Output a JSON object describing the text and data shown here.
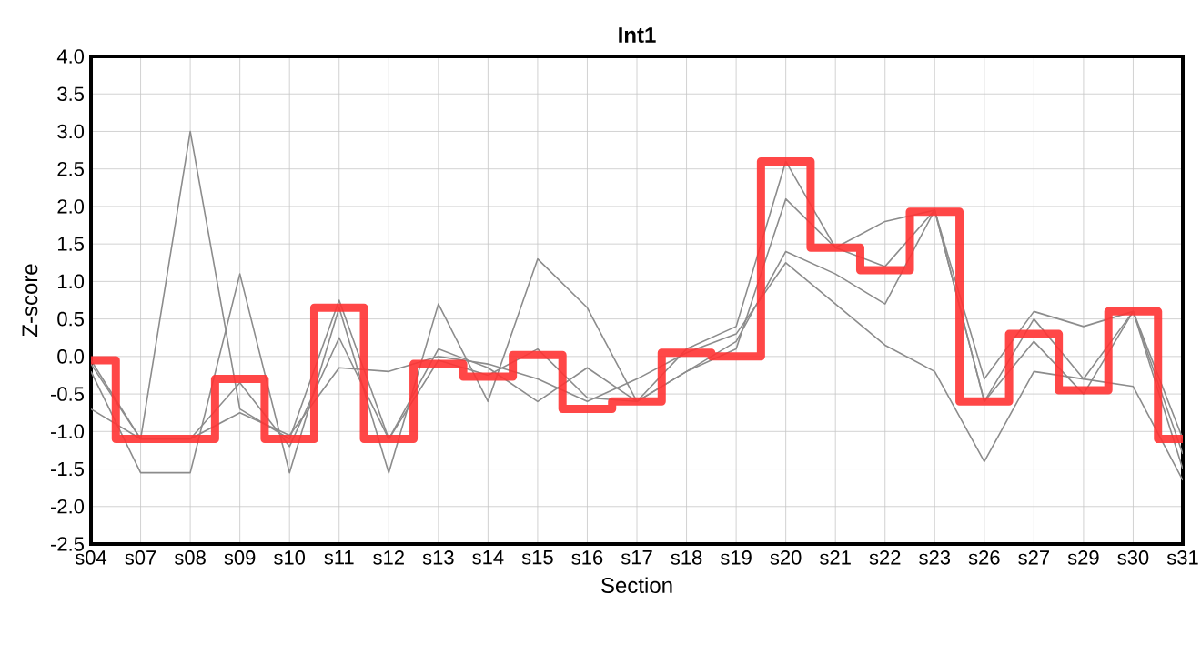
{
  "chart_data": {
    "type": "line",
    "title": "Int1",
    "xlabel": "Section",
    "ylabel": "Z-score",
    "categories": [
      "s04",
      "s07",
      "s08",
      "s09",
      "s10",
      "s11",
      "s12",
      "s13",
      "s14",
      "s15",
      "s16",
      "s17",
      "s18",
      "s19",
      "s20",
      "s21",
      "s22",
      "s23",
      "s26",
      "s27",
      "s29",
      "s30",
      "s31"
    ],
    "series": [
      {
        "color": "#8c8c8c",
        "values": [
          -0.05,
          -1.1,
          3.0,
          -0.7,
          -1.1,
          0.75,
          -1.1,
          -0.05,
          -0.25,
          0.1,
          -0.55,
          -0.6,
          0.1,
          0.4,
          2.6,
          1.45,
          1.2,
          1.95,
          -0.6,
          0.5,
          -0.3,
          0.6,
          -1.1
        ]
      },
      {
        "color": "#8c8c8c",
        "values": [
          -0.2,
          -1.55,
          -1.55,
          1.1,
          -1.55,
          0.65,
          -1.55,
          0.7,
          -0.6,
          1.3,
          0.65,
          -0.6,
          -0.2,
          0.1,
          2.1,
          1.45,
          1.8,
          1.95,
          -0.3,
          0.6,
          0.4,
          0.6,
          -1.5
        ]
      },
      {
        "color": "#8c8c8c",
        "values": [
          -0.1,
          -1.1,
          -1.1,
          -0.35,
          -1.2,
          0.25,
          -1.1,
          0.1,
          -0.15,
          -0.6,
          -0.15,
          -0.6,
          -0.2,
          0.2,
          1.4,
          1.1,
          0.7,
          1.95,
          -0.6,
          0.2,
          -0.5,
          0.6,
          -1.3
        ]
      },
      {
        "color": "#8c8c8c",
        "values": [
          -0.7,
          -1.1,
          -1.1,
          -0.75,
          -1.05,
          -0.15,
          -0.2,
          0.0,
          -0.1,
          -0.3,
          -0.6,
          -0.3,
          0.05,
          0.3,
          1.25,
          0.7,
          0.15,
          -0.2,
          -1.4,
          -0.2,
          -0.3,
          -0.4,
          -1.65
        ]
      },
      {
        "type": "step",
        "color": "#ff3333",
        "values": [
          -0.05,
          -1.1,
          -1.1,
          -0.3,
          -1.1,
          0.65,
          -1.1,
          -0.1,
          -0.27,
          0.02,
          -0.7,
          -0.6,
          0.05,
          0.0,
          2.6,
          1.45,
          1.15,
          1.93,
          -0.6,
          0.3,
          -0.45,
          0.6,
          -1.1
        ]
      }
    ],
    "ylim": [
      -2.5,
      4.0
    ],
    "yticks": [
      {
        "value": -2.5,
        "label": "-2.5"
      },
      {
        "value": -2.0,
        "label": "-2.0"
      },
      {
        "value": -1.5,
        "label": "-1.5"
      },
      {
        "value": -1.0,
        "label": "-1.0"
      },
      {
        "value": -0.5,
        "label": "-0.5"
      },
      {
        "value": 0,
        "label": "0.0"
      },
      {
        "value": 0.5,
        "label": "0.5"
      },
      {
        "value": 1.0,
        "label": "1.0"
      },
      {
        "value": 1.5,
        "label": "1.5"
      },
      {
        "value": 2.0,
        "label": "2.0"
      },
      {
        "value": 2.5,
        "label": "2.5"
      },
      {
        "value": 3.0,
        "label": "3.0"
      },
      {
        "value": 3.5,
        "label": "3.5"
      },
      {
        "value": 4.0,
        "label": "4.0"
      }
    ],
    "grid": true,
    "marker": "none",
    "line_style": "solid"
  }
}
